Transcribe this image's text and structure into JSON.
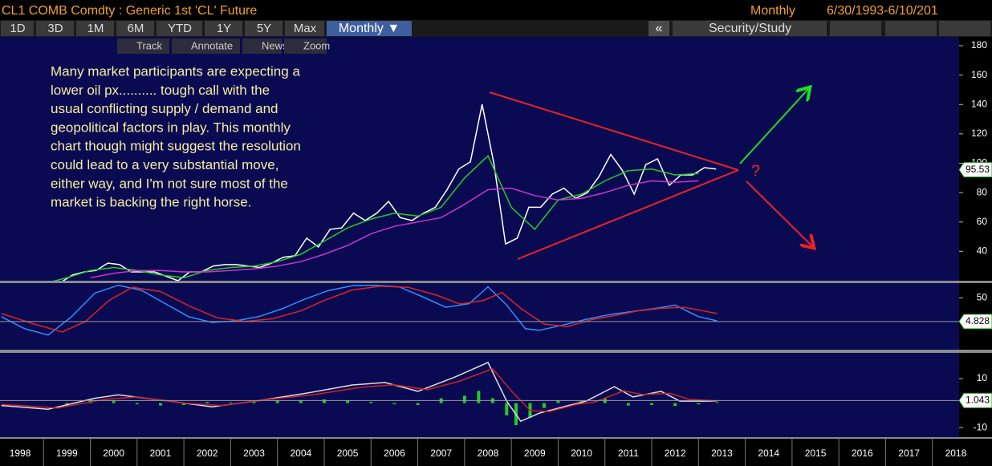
{
  "header": {
    "title": "CL1 COMB Comdty : Generic 1st 'CL' Future",
    "period": "Monthly",
    "range": "6/30/1993-6/10/201"
  },
  "toolbar": {
    "buttons": [
      "1D",
      "3D",
      "1M",
      "6M",
      "YTD",
      "1Y",
      "5Y",
      "Max"
    ],
    "period_select": "Monthly ▼",
    "collapse": "«",
    "study": "Security/Study",
    "tools": [
      "Track",
      "Annotate",
      "News",
      "Zoom"
    ]
  },
  "annotation": {
    "lines": [
      "Many market participants are expecting a",
      "lower oil px.......... tough call with the",
      "usual conflicting supply / demand and",
      "geopolitical factors in play. This monthly",
      "chart though might suggest the resolution",
      "could lead to a very substantial move,",
      "either way, and I'm not sure most of the",
      "market is backing the right horse."
    ],
    "question": "?"
  },
  "chart_data": [
    {
      "type": "line",
      "xlim": [
        1998.07,
        2018.57
      ],
      "ylim": [
        20,
        186
      ],
      "yticks": [
        40,
        60,
        80,
        100,
        120,
        140,
        160,
        180
      ],
      "last_value": 95.53,
      "series": [
        {
          "color": "#ffffff",
          "x": [
            1999.125,
            1999.375,
            1999.625,
            1999.875,
            2000.125,
            2000.375,
            2000.625,
            2000.875,
            2001.125,
            2001.375,
            2001.625,
            2001.875,
            2002.125,
            2002.375,
            2002.625,
            2002.875,
            2003.125,
            2003.375,
            2003.625,
            2003.875,
            2004.125,
            2004.375,
            2004.625,
            2004.875,
            2005.125,
            2005.375,
            2005.625,
            2005.875,
            2006.125,
            2006.375,
            2006.625,
            2006.875,
            2007.125,
            2007.375,
            2007.625,
            2007.875,
            2008.125,
            2008.375,
            2008.625,
            2008.875,
            2009.125,
            2009.375,
            2009.625,
            2009.875,
            2010.125,
            2010.375,
            2010.625,
            2010.875,
            2011.125,
            2011.375,
            2011.625,
            2011.875,
            2012.125,
            2012.375,
            2012.625,
            2012.875,
            2013.125,
            2013.375
          ],
          "values": [
            16,
            19,
            24,
            26,
            27,
            32,
            31,
            26,
            26,
            26,
            23,
            20,
            26,
            26,
            30,
            31,
            31,
            30,
            29,
            32,
            36,
            37,
            49,
            43,
            55,
            56,
            66,
            61,
            66,
            74,
            63,
            61,
            66,
            70,
            82,
            96,
            101,
            140,
            100,
            45,
            49,
            70,
            70,
            79,
            83,
            76,
            80,
            91,
            106,
            95,
            79,
            99,
            103,
            85,
            92,
            92,
            97,
            96
          ]
        },
        {
          "color": "#22cc22",
          "x": [
            1999.0,
            1999.5,
            2000.0,
            2000.5,
            2001.0,
            2001.5,
            2002.0,
            2002.5,
            2003.0,
            2003.5,
            2004.0,
            2004.5,
            2005.0,
            2005.5,
            2006.0,
            2006.5,
            2007.0,
            2007.5,
            2008.0,
            2008.5,
            2009.0,
            2009.5,
            2010.0,
            2010.5,
            2011.0,
            2011.5,
            2012.0,
            2012.5,
            2013.0
          ],
          "values": [
            18,
            22,
            27,
            29,
            27,
            24,
            22,
            27,
            29,
            30,
            33,
            38,
            47,
            56,
            62,
            66,
            64,
            70,
            90,
            105,
            70,
            55,
            75,
            79,
            88,
            95,
            96,
            92,
            93
          ]
        },
        {
          "color": "#cc33cc",
          "x": [
            2000.0,
            2000.5,
            2001.0,
            2001.5,
            2002.0,
            2002.5,
            2003.0,
            2003.5,
            2004.0,
            2004.5,
            2005.0,
            2005.5,
            2006.0,
            2006.5,
            2007.0,
            2007.5,
            2008.0,
            2008.5,
            2009.0,
            2009.5,
            2010.0,
            2010.5,
            2011.0,
            2011.5,
            2012.0,
            2012.5,
            2013.0
          ],
          "values": [
            22,
            25,
            27,
            27,
            26,
            26,
            27,
            28,
            30,
            33,
            38,
            44,
            52,
            57,
            60,
            63,
            72,
            82,
            83,
            78,
            75,
            76,
            80,
            85,
            88,
            87,
            88
          ]
        }
      ]
    },
    {
      "type": "line",
      "xlim": [
        1998.07,
        2018.57
      ],
      "ylim": [
        -49,
        78
      ],
      "yticks": [
        50
      ],
      "last_value": 4.828,
      "series": [
        {
          "color": "#2f8fff",
          "x": [
            1998.1,
            1998.6,
            1999.1,
            1999.6,
            2000.1,
            2000.6,
            2001.1,
            2001.6,
            2002.1,
            2002.6,
            2003.1,
            2003.6,
            2004.1,
            2004.6,
            2005.1,
            2005.6,
            2006.1,
            2006.6,
            2007.1,
            2007.6,
            2008.1,
            2008.5,
            2008.9,
            2009.3,
            2009.6,
            2010.1,
            2010.6,
            2011.1,
            2011.6,
            2012.1,
            2012.5,
            2013.0,
            2013.4
          ],
          "values": [
            14,
            -9,
            -21,
            14,
            59,
            74,
            64,
            39,
            14,
            3,
            6,
            14,
            29,
            48,
            64,
            73,
            74,
            71,
            52,
            32,
            39,
            71,
            36,
            -9,
            -12,
            -2,
            9,
            18,
            24,
            30,
            36,
            14,
            6
          ]
        },
        {
          "color": "#dd2222",
          "x": [
            1998.1,
            1998.8,
            1999.4,
            1999.9,
            2000.4,
            2000.9,
            2001.5,
            2002.1,
            2002.7,
            2003.3,
            2003.9,
            2004.5,
            2005.0,
            2005.6,
            2006.2,
            2006.8,
            2007.4,
            2007.9,
            2008.4,
            2008.8,
            2009.2,
            2009.7,
            2010.2,
            2010.7,
            2011.2,
            2011.7,
            2012.2,
            2012.7,
            2013.4
          ],
          "values": [
            20,
            0,
            -15,
            5,
            45,
            70,
            62,
            35,
            12,
            5,
            10,
            25,
            45,
            65,
            72,
            70,
            55,
            38,
            45,
            60,
            30,
            0,
            -5,
            8,
            16,
            25,
            30,
            32,
            20
          ]
        }
      ]
    },
    {
      "type": "line",
      "xlim": [
        1998.07,
        2018.57
      ],
      "ylim": [
        -13.9,
        20.5
      ],
      "yticks": [
        -10,
        10
      ],
      "last_value": 1.043,
      "xticks": [
        1998,
        1999,
        2000,
        2001,
        2002,
        2003,
        2004,
        2005,
        2006,
        2007,
        2008,
        2009,
        2010,
        2011,
        2012,
        2013,
        2014,
        2015,
        2016,
        2017,
        2018
      ],
      "series": [
        {
          "type": "bar",
          "color": "#22cc22",
          "x": [
            1999.5,
            2000.0,
            2000.5,
            2001.0,
            2001.5,
            2002.0,
            2002.5,
            2003.0,
            2003.5,
            2004.0,
            2004.5,
            2005.0,
            2005.5,
            2006.0,
            2006.5,
            2007.0,
            2007.5,
            2008.0,
            2008.3,
            2008.6,
            2008.9,
            2009.1,
            2009.4,
            2009.7,
            2010.0,
            2010.5,
            2011.0,
            2011.5,
            2012.0,
            2012.5,
            2013.0,
            2013.4
          ],
          "values": [
            -1,
            1.5,
            1,
            -0.5,
            -1,
            -0.8,
            0.5,
            0.3,
            0.5,
            1,
            1.2,
            1.5,
            1,
            0.5,
            -0.5,
            -0.8,
            2,
            3,
            5,
            2,
            -5,
            -9,
            -6,
            -2,
            1,
            0.8,
            2,
            -1,
            -0.8,
            -1.2,
            -0.5,
            0.3
          ]
        },
        {
          "type": "line",
          "color": "#dddddd",
          "x": [
            1998.1,
            1999.1,
            2000.1,
            2000.6,
            2001.6,
            2002.6,
            2003.6,
            2004.6,
            2005.6,
            2006.3,
            2007.0,
            2007.8,
            2008.5,
            2008.9,
            2009.2,
            2009.6,
            2010.2,
            2010.6,
            2011.2,
            2011.6,
            2012.2,
            2012.6,
            2013.4
          ],
          "values": [
            -1,
            -2.5,
            2,
            3.4,
            1,
            -1.5,
            1,
            4,
            7.4,
            8.4,
            4.8,
            10.7,
            16.6,
            0.8,
            -7.4,
            -4.1,
            -1.1,
            0.8,
            6.7,
            2.5,
            4.8,
            0.8,
            0.8
          ]
        },
        {
          "type": "line",
          "color": "#cc2222",
          "x": [
            1998.1,
            1999.3,
            2000.3,
            2001.0,
            2002.0,
            2002.8,
            2003.8,
            2004.8,
            2005.8,
            2006.5,
            2007.2,
            2007.9,
            2008.6,
            2009.0,
            2009.4,
            2009.8,
            2010.4,
            2010.8,
            2011.4,
            2011.8,
            2012.4,
            2012.8,
            2013.4
          ],
          "values": [
            -0.5,
            -2,
            1.5,
            2.5,
            0,
            -1,
            1.5,
            3.5,
            6.5,
            7.5,
            5.5,
            9,
            14,
            5,
            -3,
            -3.5,
            -0.5,
            0.5,
            5,
            3.5,
            4,
            1.5,
            0.9
          ]
        }
      ]
    }
  ]
}
